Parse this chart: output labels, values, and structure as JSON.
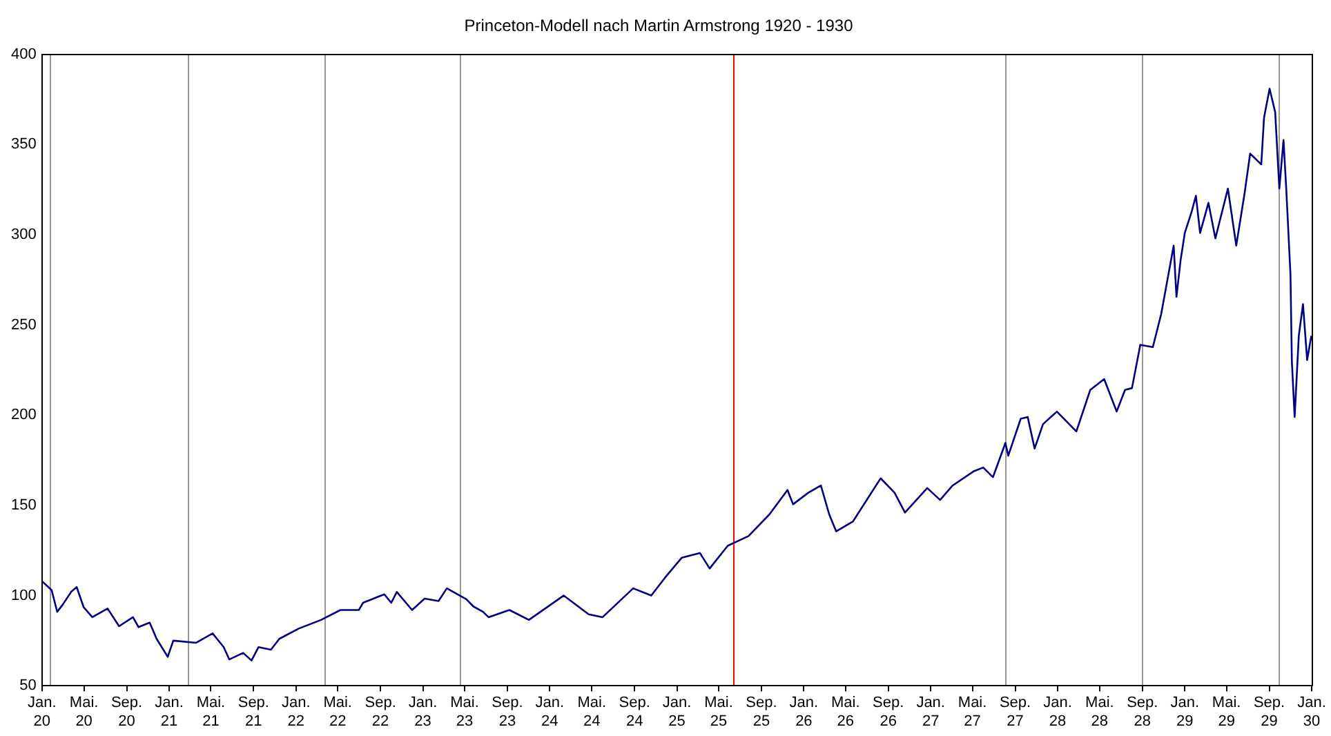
{
  "chart_data": {
    "type": "line",
    "title": "Princeton-Modell nach Martin Armstrong 1920 - 1930",
    "x": [
      "1920-01-01",
      "1920-01-29",
      "1920-02-14",
      "1920-03-01",
      "1920-03-25",
      "1920-04-10",
      "1920-04-30",
      "1920-05-25",
      "1920-07-08",
      "1920-08-10",
      "1920-09-19",
      "1920-10-05",
      "1920-11-06",
      "1920-11-26",
      "1920-12-28",
      "1921-01-13",
      "1921-03-19",
      "1921-05-06",
      "1921-06-07",
      "1921-06-23",
      "1921-08-02",
      "1921-08-26",
      "1921-09-15",
      "1921-10-21",
      "1921-11-14",
      "1922-01-09",
      "1922-03-14",
      "1922-05-09",
      "1922-07-01",
      "1922-07-13",
      "1922-09-12",
      "1922-10-02",
      "1922-10-18",
      "1922-12-01",
      "1923-01-06",
      "1923-02-15",
      "1923-03-11",
      "1923-05-06",
      "1923-05-26",
      "1923-06-23",
      "1923-07-09",
      "1923-09-07",
      "1923-11-02",
      "1924-02-10",
      "1924-04-22",
      "1924-06-01",
      "1924-08-28",
      "1924-10-19",
      "1924-11-28",
      "1925-01-15",
      "1925-03-08",
      "1925-04-05",
      "1925-05-27",
      "1925-07-26",
      "1925-09-24",
      "1925-11-15",
      "1925-12-01",
      "1926-01-14",
      "1926-02-19",
      "1926-03-15",
      "1926-04-04",
      "1926-05-22",
      "1926-08-10",
      "1926-09-19",
      "1926-10-19",
      "1926-12-22",
      "1927-01-28",
      "1927-03-05",
      "1927-05-04",
      "1927-06-01",
      "1927-06-29",
      "1927-08-04",
      "1927-08-12",
      "1927-09-17",
      "1927-10-07",
      "1927-10-27",
      "1927-11-20",
      "1927-12-30",
      "1928-02-24",
      "1928-04-04",
      "1928-05-14",
      "1928-06-19",
      "1928-07-13",
      "1928-08-02",
      "1928-08-26",
      "1928-10-01",
      "1928-10-25",
      "1928-11-30",
      "1928-12-08",
      "1928-12-20",
      "1929-01-01",
      "1929-01-21",
      "1929-02-02",
      "1929-02-14",
      "1929-03-10",
      "1929-03-30",
      "1929-05-05",
      "1929-05-29",
      "1929-06-22",
      "1929-07-08",
      "1929-08-09",
      "1929-08-17",
      "1929-09-02",
      "1929-09-18",
      "1929-09-30",
      "1929-10-12",
      "1929-10-20",
      "1929-11-01",
      "1929-11-05",
      "1929-11-13",
      "1929-11-25",
      "1929-12-07",
      "1929-12-19",
      "1929-12-31"
    ],
    "series": [
      {
        "color": "#000080",
        "values": [
          108,
          103,
          91,
          95,
          102,
          104.7,
          93.6,
          88,
          92.8,
          83,
          88,
          82.5,
          85,
          76,
          66,
          75,
          73.8,
          79,
          71.4,
          64.6,
          68.2,
          64,
          71.4,
          70,
          76,
          81.7,
          86.5,
          92,
          92,
          96,
          100.7,
          96,
          102,
          92,
          98.3,
          97,
          104,
          98,
          94,
          91,
          88,
          92,
          86.5,
          100,
          89.6,
          88,
          104,
          100,
          110,
          121,
          123.6,
          115,
          127.6,
          133,
          145,
          158.5,
          150.6,
          157,
          161,
          145,
          135.6,
          141,
          165,
          157,
          146,
          159.6,
          153,
          161,
          168.8,
          171,
          165.6,
          184.6,
          177.5,
          198,
          199,
          181.5,
          195,
          202,
          191,
          214,
          220,
          202,
          214,
          215,
          239,
          237.7,
          256,
          294,
          265.6,
          286,
          301,
          313,
          321.6,
          301,
          317.7,
          298,
          325.6,
          294,
          323,
          345,
          339,
          365,
          381,
          368,
          325.6,
          352.5,
          325,
          278,
          230,
          199,
          244,
          261.5,
          230.6,
          244
        ]
      }
    ],
    "xlim": [
      "1920-01-01",
      "1930-01-01"
    ],
    "xticks": [
      {
        "value": "1920-01-01",
        "label": "Jan. 20"
      },
      {
        "value": "1920-05-01",
        "label": "Mai. 20"
      },
      {
        "value": "1920-09-01",
        "label": "Sep. 20"
      },
      {
        "value": "1921-01-01",
        "label": "Jan. 21"
      },
      {
        "value": "1921-05-01",
        "label": "Mai. 21"
      },
      {
        "value": "1921-09-01",
        "label": "Sep. 21"
      },
      {
        "value": "1922-01-01",
        "label": "Jan. 22"
      },
      {
        "value": "1922-05-01",
        "label": "Mai. 22"
      },
      {
        "value": "1922-09-01",
        "label": "Sep. 22"
      },
      {
        "value": "1923-01-01",
        "label": "Jan. 23"
      },
      {
        "value": "1923-05-01",
        "label": "Mai. 23"
      },
      {
        "value": "1923-09-01",
        "label": "Sep. 23"
      },
      {
        "value": "1924-01-01",
        "label": "Jan. 24"
      },
      {
        "value": "1924-05-01",
        "label": "Mai. 24"
      },
      {
        "value": "1924-09-01",
        "label": "Sep. 24"
      },
      {
        "value": "1925-01-01",
        "label": "Jan. 25"
      },
      {
        "value": "1925-05-01",
        "label": "Mai. 25"
      },
      {
        "value": "1925-09-01",
        "label": "Sep. 25"
      },
      {
        "value": "1926-01-01",
        "label": "Jan. 26"
      },
      {
        "value": "1926-05-01",
        "label": "Mai. 26"
      },
      {
        "value": "1926-09-01",
        "label": "Sep. 26"
      },
      {
        "value": "1927-01-01",
        "label": "Jan. 27"
      },
      {
        "value": "1927-05-01",
        "label": "Mai. 27"
      },
      {
        "value": "1927-09-01",
        "label": "Sep. 27"
      },
      {
        "value": "1928-01-01",
        "label": "Jan. 28"
      },
      {
        "value": "1928-05-01",
        "label": "Mai. 28"
      },
      {
        "value": "1928-09-01",
        "label": "Sep. 28"
      },
      {
        "value": "1929-01-01",
        "label": "Jan. 29"
      },
      {
        "value": "1929-05-01",
        "label": "Mai. 29"
      },
      {
        "value": "1929-09-01",
        "label": "Sep. 29"
      },
      {
        "value": "1930-01-01",
        "label": "Jan. 30"
      }
    ],
    "ylim": [
      50,
      400
    ],
    "yticks": [
      50,
      100,
      150,
      200,
      250,
      300,
      350,
      400
    ],
    "ref_lines": [
      {
        "axis": "x",
        "value": "1920-01-25",
        "color": "#999999"
      },
      {
        "axis": "x",
        "value": "1921-02-23",
        "color": "#999999"
      },
      {
        "axis": "x",
        "value": "1922-03-22",
        "color": "#999999"
      },
      {
        "axis": "x",
        "value": "1923-04-19",
        "color": "#999999"
      },
      {
        "axis": "x",
        "value": "1925-06-11",
        "color": "#ff0000"
      },
      {
        "axis": "x",
        "value": "1927-08-04",
        "color": "#999999"
      },
      {
        "axis": "x",
        "value": "1928-08-30",
        "color": "#999999"
      },
      {
        "axis": "x",
        "value": "1929-09-26",
        "color": "#999999"
      }
    ],
    "grid": false,
    "legend": false,
    "marker": "none",
    "line_style": "solid"
  }
}
